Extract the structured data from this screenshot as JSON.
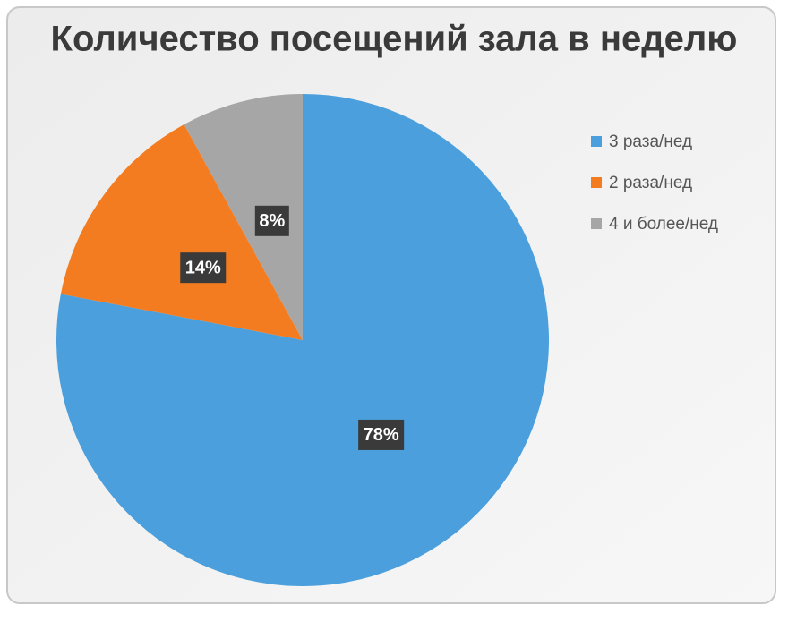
{
  "chart_data": {
    "type": "pie",
    "title": "Количество посещений зала в неделю",
    "categories": [
      "3 раза/нед",
      "2 раза/нед",
      "4 и более/нед"
    ],
    "values": [
      78,
      14,
      8
    ],
    "value_labels": [
      "78%",
      "14%",
      "8%"
    ],
    "colors": [
      "#4a9fdc",
      "#f47c20",
      "#a6a6a6"
    ],
    "legend": "right"
  }
}
